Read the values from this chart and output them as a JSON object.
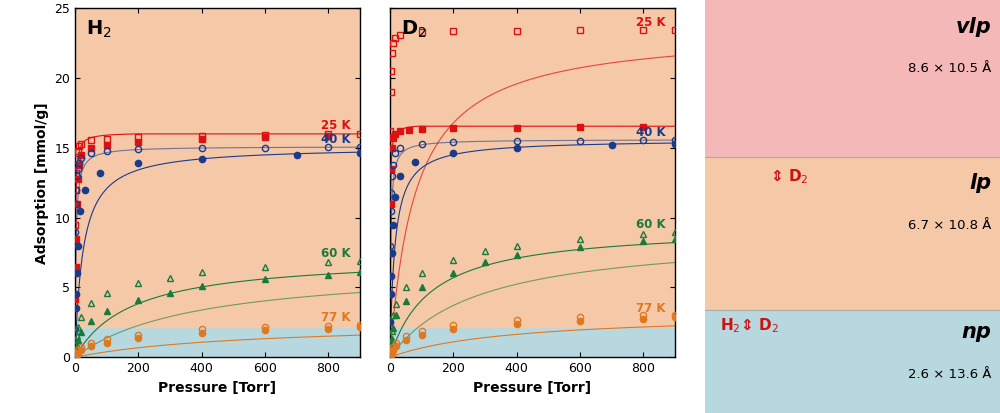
{
  "fig_width": 10.0,
  "fig_height": 4.13,
  "dpi": 100,
  "xlabel": "Pressure [Torr]",
  "ylabel": "Adsorption [mmol/g]",
  "xlim": [
    0,
    900
  ],
  "ylim": [
    0,
    25
  ],
  "yticks": [
    0,
    5,
    10,
    15,
    20,
    25
  ],
  "xticks": [
    0,
    200,
    400,
    600,
    800
  ],
  "colors": {
    "25K": "#dd1111",
    "40K": "#1a3a8a",
    "60K": "#1a7a3a",
    "77K": "#e07820"
  },
  "bg_salmon": "#f5c8a8",
  "bg_lightblue": "#b8d8e0",
  "right_vlp_bg": "#f5b8b8",
  "right_lp_bg": "#f5c8a8",
  "right_np_bg": "#b8d8e0",
  "H2_25K_open_x": [
    1,
    2,
    3,
    5,
    8,
    12,
    20,
    50,
    100,
    200,
    400,
    600,
    800,
    900
  ],
  "H2_25K_open_y": [
    9.5,
    12.0,
    13.2,
    14.2,
    14.8,
    15.1,
    15.3,
    15.55,
    15.65,
    15.75,
    15.85,
    15.9,
    16.0,
    16.0
  ],
  "H2_25K_fill_x": [
    1,
    2,
    3,
    5,
    8,
    12,
    20,
    50,
    100,
    200,
    400,
    600,
    800
  ],
  "H2_25K_fill_y": [
    4.2,
    6.5,
    8.5,
    11.0,
    12.8,
    13.8,
    14.5,
    15.0,
    15.2,
    15.4,
    15.6,
    15.75,
    15.85
  ],
  "H2_40K_open_x": [
    1,
    2,
    3,
    5,
    8,
    12,
    20,
    50,
    100,
    200,
    400,
    600,
    800,
    900
  ],
  "H2_40K_open_y": [
    9.0,
    11.0,
    12.0,
    13.0,
    13.5,
    13.9,
    14.3,
    14.6,
    14.8,
    14.9,
    15.0,
    15.0,
    15.05,
    15.05
  ],
  "H2_40K_fill_x": [
    1,
    2,
    3,
    5,
    8,
    15,
    30,
    80,
    200,
    400,
    700,
    900
  ],
  "H2_40K_fill_y": [
    2.0,
    3.5,
    4.5,
    6.0,
    8.0,
    10.5,
    12.0,
    13.2,
    13.9,
    14.2,
    14.5,
    14.6
  ],
  "H2_60K_open_x": [
    1,
    3,
    5,
    10,
    20,
    50,
    100,
    200,
    300,
    400,
    600,
    800,
    900
  ],
  "H2_60K_open_y": [
    0.5,
    1.0,
    1.5,
    2.2,
    2.9,
    3.9,
    4.6,
    5.3,
    5.7,
    6.1,
    6.5,
    6.8,
    6.9
  ],
  "H2_60K_fill_x": [
    1,
    3,
    5,
    10,
    20,
    50,
    100,
    200,
    300,
    400,
    600,
    800,
    900
  ],
  "H2_60K_fill_y": [
    0.2,
    0.5,
    0.8,
    1.2,
    1.8,
    2.6,
    3.3,
    4.1,
    4.6,
    5.1,
    5.6,
    5.9,
    6.1
  ],
  "H2_77K_open_x": [
    1,
    3,
    5,
    10,
    20,
    50,
    100,
    200,
    400,
    600,
    800,
    900
  ],
  "H2_77K_open_y": [
    0.1,
    0.2,
    0.3,
    0.5,
    0.7,
    1.0,
    1.3,
    1.6,
    2.0,
    2.15,
    2.25,
    2.3
  ],
  "H2_77K_fill_x": [
    1,
    3,
    5,
    10,
    20,
    50,
    100,
    200,
    400,
    600,
    800,
    900
  ],
  "H2_77K_fill_y": [
    0.05,
    0.1,
    0.15,
    0.3,
    0.5,
    0.8,
    1.05,
    1.35,
    1.75,
    1.95,
    2.05,
    2.15
  ],
  "D2_25K_open_x": [
    1,
    2,
    3,
    5,
    8,
    15,
    30,
    100,
    200,
    400,
    600,
    800,
    900
  ],
  "D2_25K_open_y": [
    16.2,
    19.0,
    20.5,
    21.8,
    22.5,
    22.9,
    23.1,
    23.3,
    23.35,
    23.4,
    23.42,
    23.45,
    23.45
  ],
  "D2_25K_fill_x": [
    1,
    2,
    3,
    5,
    8,
    15,
    30,
    60,
    100,
    200,
    400,
    600,
    800
  ],
  "D2_25K_fill_y": [
    7.5,
    11.0,
    13.5,
    15.0,
    15.7,
    16.0,
    16.2,
    16.3,
    16.35,
    16.4,
    16.45,
    16.5,
    16.5
  ],
  "D2_40K_open_x": [
    1,
    2,
    3,
    5,
    8,
    15,
    30,
    100,
    200,
    400,
    600,
    800,
    900
  ],
  "D2_40K_open_y": [
    8.0,
    10.5,
    11.8,
    13.0,
    13.8,
    14.6,
    15.0,
    15.3,
    15.4,
    15.5,
    15.5,
    15.55,
    15.55
  ],
  "D2_40K_fill_x": [
    1,
    2,
    3,
    5,
    8,
    15,
    30,
    80,
    200,
    400,
    700,
    900
  ],
  "D2_40K_fill_y": [
    2.5,
    4.5,
    5.8,
    7.5,
    9.5,
    11.5,
    13.0,
    14.0,
    14.6,
    15.0,
    15.2,
    15.3
  ],
  "D2_60K_open_x": [
    1,
    3,
    5,
    10,
    20,
    50,
    100,
    200,
    300,
    400,
    600,
    800,
    900
  ],
  "D2_60K_open_y": [
    0.5,
    1.2,
    1.9,
    3.0,
    3.8,
    5.0,
    6.0,
    7.0,
    7.6,
    8.0,
    8.5,
    8.8,
    9.0
  ],
  "D2_60K_fill_x": [
    1,
    3,
    5,
    10,
    20,
    50,
    100,
    200,
    300,
    400,
    600,
    800,
    900
  ],
  "D2_60K_fill_y": [
    0.3,
    0.8,
    1.3,
    2.1,
    3.0,
    4.0,
    5.0,
    6.0,
    6.8,
    7.3,
    7.9,
    8.3,
    8.5
  ],
  "D2_77K_open_x": [
    1,
    3,
    5,
    10,
    20,
    50,
    100,
    200,
    400,
    600,
    800,
    900
  ],
  "D2_77K_open_y": [
    0.1,
    0.25,
    0.4,
    0.7,
    1.0,
    1.5,
    1.9,
    2.3,
    2.7,
    2.9,
    3.0,
    3.05
  ],
  "D2_77K_fill_x": [
    1,
    3,
    5,
    10,
    20,
    50,
    100,
    200,
    400,
    600,
    800,
    900
  ],
  "D2_77K_fill_y": [
    0.05,
    0.15,
    0.25,
    0.5,
    0.8,
    1.2,
    1.6,
    2.0,
    2.4,
    2.6,
    2.75,
    2.85
  ],
  "marker_size": 4.5,
  "line_width": 0.8,
  "np_boundary": 2.2
}
